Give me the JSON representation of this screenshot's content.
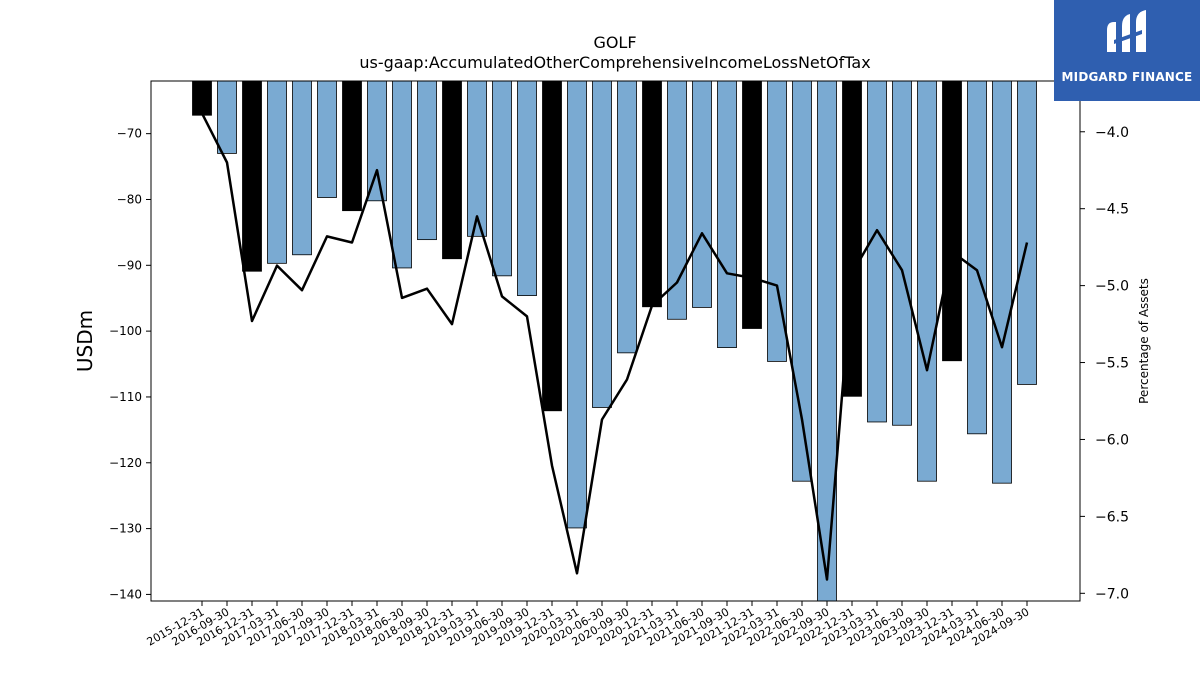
{
  "logo": {
    "brand": "MIDGARD FINANCE",
    "color": "#2f5fb0",
    "icon": "midgard-logo-icon"
  },
  "chart_data": {
    "type": "bar",
    "title": "GOLF",
    "subtitle": "us-gaap:AccumulatedOtherComprehensiveIncomeLossNetOfTax",
    "ylabel": "USDm",
    "y2label": "Percentage of Assets",
    "ylim": [
      -141,
      -62
    ],
    "y2lim": [
      -7.05,
      -3.67
    ],
    "yticks": [
      -70,
      -80,
      -90,
      -100,
      -110,
      -120,
      -130,
      -140
    ],
    "y2ticks": [
      -4.0,
      -4.5,
      -5.0,
      -5.5,
      -6.0,
      -6.5,
      -7.0
    ],
    "y2tick_labels": [
      "−4.0",
      "−4.5",
      "−5.0",
      "−5.5",
      "−6.0",
      "−6.5",
      "−7.0"
    ],
    "categories": [
      "2015-12-31",
      "2016-09-30",
      "2016-12-31",
      "2017-03-31",
      "2017-06-30",
      "2017-09-30",
      "2017-12-31",
      "2018-03-31",
      "2018-06-30",
      "2018-09-30",
      "2018-12-31",
      "2019-03-31",
      "2019-06-30",
      "2019-09-30",
      "2019-12-31",
      "2020-03-31",
      "2020-06-30",
      "2020-09-30",
      "2020-12-31",
      "2021-03-31",
      "2021-06-30",
      "2021-09-30",
      "2021-12-31",
      "2022-03-31",
      "2022-06-30",
      "2022-09-30",
      "2022-12-31",
      "2023-03-31",
      "2023-06-30",
      "2023-09-30",
      "2023-12-31",
      "2024-03-31",
      "2024-06-30",
      "2024-09-30"
    ],
    "series": [
      {
        "kind": "bar",
        "values": [
          -67.2,
          -73.0,
          -90.9,
          -89.7,
          -88.4,
          -79.7,
          -81.7,
          -80.2,
          -90.4,
          -86.1,
          -89.0,
          -85.6,
          -91.6,
          -94.6,
          -112.1,
          -129.9,
          -111.6,
          -103.3,
          -96.3,
          -98.2,
          -96.4,
          -102.5,
          -99.6,
          -104.6,
          -122.8,
          -141.0,
          -109.9,
          -113.8,
          -114.3,
          -122.8,
          -104.5,
          -115.6,
          -123.1,
          -108.1
        ],
        "highlight_categories": [
          "2015-12-31",
          "2016-12-31",
          "2017-12-31",
          "2018-12-31",
          "2019-12-31",
          "2020-12-31",
          "2021-12-31",
          "2022-12-31",
          "2023-12-31"
        ],
        "color": "#7aaad2",
        "highlight_color": "#000000"
      },
      {
        "kind": "line",
        "axis": "right",
        "values": [
          -3.88,
          -4.2,
          -5.23,
          -4.87,
          -5.03,
          -4.68,
          -4.72,
          -4.25,
          -5.08,
          -5.02,
          -5.25,
          -4.55,
          -5.07,
          -5.2,
          -6.17,
          -6.87,
          -5.87,
          -5.61,
          -5.13,
          -4.98,
          -4.66,
          -4.92,
          -4.95,
          -5.0,
          -5.87,
          -6.91,
          -4.92,
          -4.64,
          -4.9,
          -5.55,
          -4.78,
          -4.9,
          -5.4,
          -4.72
        ],
        "color": "#000000"
      }
    ]
  }
}
